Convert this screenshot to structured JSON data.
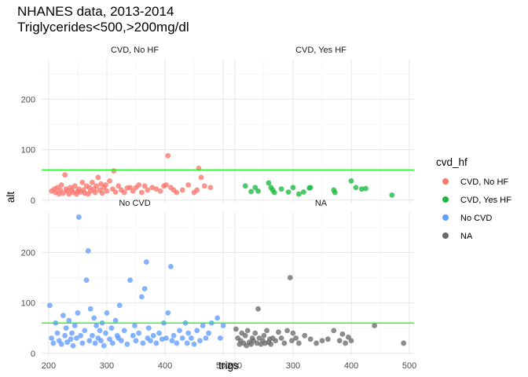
{
  "chart_data": {
    "type": "scatter",
    "title": "NHANES data, 2013-2014",
    "subtitle": "Triglycerides<500,>200mg/dl",
    "xlabel": "trigs",
    "ylabel": "alt",
    "xlim": [
      188,
      508
    ],
    "ylim": [
      -5,
      280
    ],
    "x_ticks": [
      200,
      300,
      400,
      500
    ],
    "y_ticks": [
      0,
      100,
      200
    ],
    "reference_line": {
      "y": 60,
      "color": "#00ff00"
    },
    "grid": true,
    "legend": {
      "title": "cvd_hf",
      "position": "right",
      "entries": [
        {
          "label": "CVD, No HF",
          "color": "#F8766D"
        },
        {
          "label": "CVD, Yes HF",
          "color": "#1BB840"
        },
        {
          "label": "No CVD",
          "color": "#619CFF"
        },
        {
          "label": "NA",
          "color": "#6b6b6b"
        }
      ]
    },
    "panels": [
      {
        "label": "CVD, No HF",
        "color": "#F8766D",
        "points": [
          [
            205,
            18
          ],
          [
            210,
            22
          ],
          [
            212,
            15
          ],
          [
            215,
            25
          ],
          [
            218,
            12
          ],
          [
            220,
            20
          ],
          [
            222,
            30
          ],
          [
            225,
            14
          ],
          [
            228,
            50
          ],
          [
            230,
            22
          ],
          [
            232,
            18
          ],
          [
            235,
            12
          ],
          [
            237,
            25
          ],
          [
            240,
            20
          ],
          [
            242,
            15
          ],
          [
            245,
            28
          ],
          [
            248,
            12
          ],
          [
            250,
            18
          ],
          [
            252,
            22
          ],
          [
            255,
            16
          ],
          [
            258,
            35
          ],
          [
            260,
            20
          ],
          [
            262,
            14
          ],
          [
            265,
            28
          ],
          [
            268,
            12
          ],
          [
            270,
            25
          ],
          [
            272,
            18
          ],
          [
            275,
            35
          ],
          [
            278,
            22
          ],
          [
            280,
            15
          ],
          [
            282,
            28
          ],
          [
            285,
            45
          ],
          [
            288,
            20
          ],
          [
            290,
            32
          ],
          [
            292,
            14
          ],
          [
            295,
            25
          ],
          [
            298,
            30
          ],
          [
            300,
            18
          ],
          [
            305,
            38
          ],
          [
            310,
            22
          ],
          [
            312,
            58
          ],
          [
            315,
            16
          ],
          [
            320,
            28
          ],
          [
            325,
            20
          ],
          [
            330,
            15
          ],
          [
            335,
            24
          ],
          [
            340,
            25
          ],
          [
            345,
            18
          ],
          [
            350,
            25
          ],
          [
            355,
            30
          ],
          [
            360,
            15
          ],
          [
            365,
            28
          ],
          [
            370,
            20
          ],
          [
            378,
            25
          ],
          [
            385,
            22
          ],
          [
            392,
            18
          ],
          [
            398,
            28
          ],
          [
            402,
            30
          ],
          [
            405,
            88
          ],
          [
            410,
            25
          ],
          [
            415,
            20
          ],
          [
            420,
            15
          ],
          [
            430,
            20
          ],
          [
            440,
            30
          ],
          [
            450,
            15
          ],
          [
            455,
            20
          ],
          [
            458,
            63
          ],
          [
            462,
            45
          ],
          [
            468,
            28
          ],
          [
            478,
            25
          ]
        ]
      },
      {
        "label": "CVD, Yes HF",
        "color": "#1BB840",
        "points": [
          [
            218,
            28
          ],
          [
            228,
            17
          ],
          [
            235,
            25
          ],
          [
            240,
            18
          ],
          [
            258,
            34
          ],
          [
            262,
            25
          ],
          [
            265,
            20
          ],
          [
            268,
            15
          ],
          [
            280,
            22
          ],
          [
            292,
            16
          ],
          [
            300,
            25
          ],
          [
            310,
            12
          ],
          [
            318,
            16
          ],
          [
            328,
            24
          ],
          [
            330,
            25
          ],
          [
            370,
            20
          ],
          [
            372,
            15
          ],
          [
            400,
            38
          ],
          [
            408,
            25
          ],
          [
            418,
            22
          ],
          [
            425,
            23
          ],
          [
            470,
            10
          ]
        ]
      },
      {
        "label": "No CVD",
        "color": "#619CFF",
        "points": [
          [
            202,
            95
          ],
          [
            205,
            30
          ],
          [
            208,
            20
          ],
          [
            212,
            60
          ],
          [
            215,
            40
          ],
          [
            218,
            25
          ],
          [
            222,
            18
          ],
          [
            225,
            75
          ],
          [
            228,
            35
          ],
          [
            230,
            50
          ],
          [
            232,
            22
          ],
          [
            235,
            65
          ],
          [
            238,
            28
          ],
          [
            240,
            40
          ],
          [
            242,
            15
          ],
          [
            245,
            55
          ],
          [
            248,
            30
          ],
          [
            250,
            80
          ],
          [
            252,
            270
          ],
          [
            255,
            35
          ],
          [
            258,
            20
          ],
          [
            262,
            45
          ],
          [
            265,
            145
          ],
          [
            268,
            203
          ],
          [
            270,
            25
          ],
          [
            272,
            88
          ],
          [
            275,
            35
          ],
          [
            278,
            70
          ],
          [
            280,
            20
          ],
          [
            282,
            55
          ],
          [
            285,
            30
          ],
          [
            288,
            45
          ],
          [
            290,
            25
          ],
          [
            292,
            60
          ],
          [
            295,
            15
          ],
          [
            298,
            40
          ],
          [
            300,
            80
          ],
          [
            305,
            28
          ],
          [
            308,
            50
          ],
          [
            310,
            20
          ],
          [
            315,
            65
          ],
          [
            318,
            35
          ],
          [
            320,
            30
          ],
          [
            322,
            95
          ],
          [
            325,
            25
          ],
          [
            330,
            45
          ],
          [
            335,
            18
          ],
          [
            340,
            145
          ],
          [
            345,
            35
          ],
          [
            348,
            55
          ],
          [
            350,
            25
          ],
          [
            355,
            40
          ],
          [
            360,
            112
          ],
          [
            362,
            20
          ],
          [
            365,
            128
          ],
          [
            368,
            181
          ],
          [
            370,
            30
          ],
          [
            372,
            50
          ],
          [
            375,
            25
          ],
          [
            380,
            35
          ],
          [
            385,
            20
          ],
          [
            390,
            40
          ],
          [
            395,
            28
          ],
          [
            398,
            60
          ],
          [
            402,
            30
          ],
          [
            405,
            80
          ],
          [
            410,
            172
          ],
          [
            412,
            25
          ],
          [
            415,
            35
          ],
          [
            420,
            20
          ],
          [
            425,
            45
          ],
          [
            430,
            30
          ],
          [
            435,
            60
          ],
          [
            438,
            20
          ],
          [
            440,
            40
          ],
          [
            445,
            30
          ],
          [
            450,
            18
          ],
          [
            455,
            45
          ],
          [
            460,
            25
          ],
          [
            465,
            55
          ],
          [
            470,
            30
          ],
          [
            475,
            40
          ],
          [
            480,
            60
          ],
          [
            490,
            70
          ],
          [
            495,
            30
          ],
          [
            500,
            55
          ]
        ]
      },
      {
        "label": "NA",
        "color": "#6b6b6b",
        "points": [
          [
            202,
            48
          ],
          [
            205,
            30
          ],
          [
            208,
            18
          ],
          [
            210,
            25
          ],
          [
            212,
            40
          ],
          [
            215,
            20
          ],
          [
            218,
            35
          ],
          [
            220,
            15
          ],
          [
            222,
            45
          ],
          [
            225,
            22
          ],
          [
            228,
            18
          ],
          [
            230,
            30
          ],
          [
            232,
            25
          ],
          [
            235,
            40
          ],
          [
            238,
            20
          ],
          [
            240,
            88
          ],
          [
            242,
            30
          ],
          [
            245,
            18
          ],
          [
            248,
            25
          ],
          [
            250,
            35
          ],
          [
            252,
            20
          ],
          [
            255,
            45
          ],
          [
            258,
            22
          ],
          [
            260,
            28
          ],
          [
            262,
            18
          ],
          [
            265,
            30
          ],
          [
            270,
            25
          ],
          [
            275,
            42
          ],
          [
            280,
            30
          ],
          [
            285,
            20
          ],
          [
            290,
            45
          ],
          [
            295,
            150
          ],
          [
            298,
            25
          ],
          [
            300,
            40
          ],
          [
            305,
            30
          ],
          [
            310,
            20
          ],
          [
            320,
            35
          ],
          [
            330,
            28
          ],
          [
            340,
            20
          ],
          [
            350,
            25
          ],
          [
            360,
            28
          ],
          [
            370,
            45
          ],
          [
            380,
            25
          ],
          [
            385,
            38
          ],
          [
            390,
            20
          ],
          [
            395,
            32
          ],
          [
            400,
            25
          ],
          [
            440,
            55
          ],
          [
            490,
            20
          ]
        ]
      }
    ]
  }
}
